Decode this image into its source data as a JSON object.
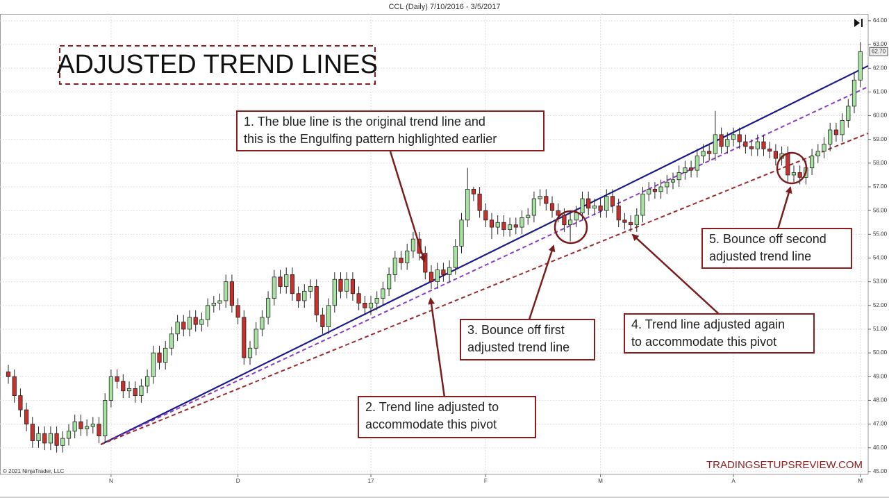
{
  "chart_data": {
    "type": "candlestick",
    "title": "CCL (Daily)  7/10/2016 - 3/5/2017",
    "heading": "ADJUSTED TREND LINES",
    "copyright": "© 2021 NinjaTrader, LLC",
    "watermark": "TRADINGSETUPSREVIEW.COM",
    "up_color": "#a6e3a0",
    "down_color": "#c8302c",
    "xlim": [
      -1.38,
      142.3
    ],
    "ylim": [
      44.88,
      64.29
    ],
    "xticks": [
      {
        "value": 17,
        "label": "N"
      },
      {
        "value": 38,
        "label": "D"
      },
      {
        "value": 60,
        "label": "17"
      },
      {
        "value": 79,
        "label": "F"
      },
      {
        "value": 98,
        "label": "M"
      },
      {
        "value": 120,
        "label": "A"
      },
      {
        "value": 141,
        "label": "M"
      }
    ],
    "yticks": [
      {
        "value": 45,
        "label": "45.00"
      },
      {
        "value": 46,
        "label": "46.00"
      },
      {
        "value": 47,
        "label": "47.00"
      },
      {
        "value": 48,
        "label": "48.00"
      },
      {
        "value": 49,
        "label": "49.00"
      },
      {
        "value": 50,
        "label": "50.00"
      },
      {
        "value": 51,
        "label": "51.00"
      },
      {
        "value": 52,
        "label": "52.00"
      },
      {
        "value": 53,
        "label": "53.00"
      },
      {
        "value": 54,
        "label": "54.00"
      },
      {
        "value": 55,
        "label": "55.00"
      },
      {
        "value": 56,
        "label": "56.00"
      },
      {
        "value": 57,
        "label": "57.00"
      },
      {
        "value": 58,
        "label": "58.00"
      },
      {
        "value": 59,
        "label": "59.00"
      },
      {
        "value": 60,
        "label": "60.00"
      },
      {
        "value": 61,
        "label": "61.00"
      },
      {
        "value": 62,
        "label": "62.00"
      },
      {
        "value": 63,
        "label": "63.00"
      },
      {
        "value": 64,
        "label": "64.00"
      }
    ],
    "grid": true,
    "open": [
      49.2,
      49.0,
      48.2,
      47.6,
      47.0,
      46.3,
      46.6,
      46.2,
      46.6,
      46.1,
      46.4,
      46.7,
      47.1,
      46.8,
      46.9,
      47.0,
      46.5,
      48.0,
      49.0,
      48.8,
      48.4,
      48.5,
      48.2,
      48.6,
      49.0,
      50.0,
      49.6,
      50.2,
      50.8,
      51.3,
      51.0,
      51.5,
      51.2,
      51.4,
      52.0,
      52.1,
      52.2,
      53.0,
      52.0,
      51.5,
      49.8,
      50.2,
      51.0,
      51.5,
      52.3,
      53.2,
      52.8,
      53.3,
      52.5,
      52.2,
      52.6,
      52.8,
      51.6,
      51.1,
      52.0,
      53.1,
      52.6,
      53.1,
      52.5,
      52.1,
      51.9,
      52.1,
      52.3,
      52.7,
      53.3,
      54.0,
      53.8,
      54.3,
      54.8,
      54.2,
      53.4,
      53.0,
      53.5,
      53.3,
      53.6,
      54.5,
      55.6,
      56.9,
      56.7,
      56.0,
      55.6,
      55.3,
      55.5,
      55.2,
      55.4,
      55.3,
      55.7,
      55.8,
      56.5,
      56.6,
      56.3,
      56.0,
      55.8,
      55.4,
      55.6,
      55.9,
      56.5,
      56.1,
      56.2,
      56.0,
      56.6,
      56.2,
      55.6,
      55.5,
      55.4,
      55.8,
      56.7,
      56.9,
      56.8,
      57.0,
      57.2,
      57.3,
      57.6,
      57.8,
      57.7,
      58.3,
      58.5,
      58.4,
      59.2,
      58.7,
      59.0,
      59.2,
      58.9,
      58.7,
      58.6,
      58.9,
      58.6,
      58.5,
      58.2,
      58.4,
      57.5,
      57.6,
      57.4,
      57.8,
      58.3,
      58.5,
      58.8,
      59.4,
      59.2,
      59.8,
      60.4,
      61.5
    ],
    "high": [
      49.5,
      49.3,
      48.5,
      47.9,
      47.3,
      46.9,
      46.9,
      46.9,
      46.9,
      46.7,
      47.0,
      47.4,
      47.4,
      47.2,
      47.3,
      47.3,
      48.3,
      49.3,
      49.3,
      49.1,
      48.8,
      48.8,
      48.9,
      49.3,
      50.3,
      50.3,
      50.5,
      51.1,
      51.6,
      51.6,
      51.8,
      51.8,
      51.7,
      52.3,
      52.4,
      52.5,
      53.3,
      53.3,
      52.3,
      51.8,
      50.5,
      51.3,
      51.8,
      52.6,
      53.5,
      53.5,
      53.6,
      53.6,
      52.8,
      52.9,
      53.1,
      53.1,
      51.9,
      52.3,
      53.4,
      53.4,
      53.4,
      53.4,
      52.8,
      52.4,
      52.4,
      52.6,
      53.0,
      53.6,
      54.3,
      54.3,
      54.6,
      55.1,
      55.1,
      54.5,
      53.7,
      53.8,
      53.8,
      53.9,
      54.8,
      55.9,
      57.8,
      57.0,
      57.0,
      56.3,
      55.9,
      55.8,
      55.8,
      55.7,
      55.7,
      56.0,
      56.1,
      56.8,
      56.9,
      56.9,
      56.6,
      56.3,
      56.1,
      55.9,
      56.2,
      56.8,
      56.8,
      56.5,
      56.5,
      56.9,
      56.9,
      56.5,
      55.9,
      55.8,
      56.1,
      57.0,
      57.2,
      57.2,
      57.3,
      57.5,
      57.6,
      57.9,
      58.1,
      58.1,
      58.6,
      58.8,
      58.8,
      60.2,
      59.5,
      59.3,
      59.5,
      59.5,
      59.2,
      59.0,
      59.2,
      59.2,
      58.9,
      58.8,
      58.7,
      58.7,
      57.9,
      57.9,
      58.1,
      58.6,
      58.8,
      59.1,
      59.7,
      59.7,
      60.1,
      60.7,
      61.8,
      63.1
    ],
    "low": [
      48.7,
      47.9,
      47.3,
      46.7,
      46.0,
      46.0,
      45.9,
      45.9,
      45.8,
      45.8,
      46.1,
      46.4,
      46.5,
      46.5,
      46.6,
      46.2,
      46.2,
      47.7,
      48.5,
      48.1,
      48.1,
      47.9,
      47.9,
      48.3,
      48.7,
      49.3,
      49.3,
      49.9,
      50.5,
      50.7,
      50.7,
      50.9,
      50.9,
      51.1,
      51.7,
      51.8,
      51.9,
      51.7,
      51.2,
      49.5,
      49.5,
      49.9,
      50.7,
      51.2,
      52.0,
      52.5,
      52.5,
      52.2,
      51.9,
      51.9,
      52.3,
      51.3,
      50.8,
      50.8,
      51.7,
      52.3,
      52.3,
      52.2,
      51.8,
      51.6,
      51.6,
      51.8,
      52.0,
      52.4,
      53.0,
      53.5,
      53.5,
      54.0,
      53.9,
      53.1,
      52.7,
      52.7,
      53.0,
      53.0,
      53.3,
      54.2,
      55.3,
      56.4,
      55.7,
      55.3,
      54.8,
      55.0,
      54.9,
      54.9,
      55.0,
      55.0,
      55.4,
      55.5,
      56.2,
      56.0,
      55.7,
      55.5,
      55.1,
      54.7,
      55.3,
      55.6,
      55.8,
      55.8,
      55.7,
      55.7,
      55.9,
      55.3,
      55.2,
      55.1,
      55.1,
      55.5,
      56.4,
      56.5,
      56.5,
      56.7,
      56.9,
      57.0,
      57.3,
      57.4,
      57.4,
      58.0,
      58.1,
      58.1,
      58.4,
      58.4,
      58.7,
      58.6,
      58.4,
      58.3,
      58.3,
      58.3,
      58.2,
      57.9,
      57.9,
      57.2,
      57.2,
      57.1,
      57.1,
      57.5,
      58.0,
      58.2,
      58.5,
      58.9,
      58.9,
      59.5,
      60.1,
      61.2
    ],
    "close": [
      49.0,
      48.2,
      47.6,
      47.0,
      46.3,
      46.6,
      46.2,
      46.6,
      46.1,
      46.4,
      46.7,
      47.1,
      46.8,
      46.9,
      47.0,
      46.5,
      48.0,
      49.0,
      48.8,
      48.4,
      48.5,
      48.2,
      48.6,
      49.0,
      50.0,
      49.6,
      50.2,
      50.8,
      51.3,
      51.0,
      51.5,
      51.2,
      51.4,
      52.0,
      52.1,
      52.2,
      53.0,
      52.0,
      51.5,
      49.8,
      50.2,
      51.0,
      51.5,
      52.3,
      53.2,
      52.8,
      53.3,
      52.5,
      52.2,
      52.6,
      52.8,
      51.6,
      51.1,
      52.0,
      53.1,
      52.6,
      53.1,
      52.5,
      52.1,
      51.9,
      52.1,
      52.3,
      52.7,
      53.3,
      54.0,
      53.8,
      54.3,
      54.8,
      54.2,
      53.4,
      53.0,
      53.5,
      53.3,
      53.6,
      54.5,
      55.6,
      56.9,
      56.7,
      56.0,
      55.6,
      55.3,
      55.5,
      55.2,
      55.4,
      55.3,
      55.7,
      55.8,
      56.5,
      56.6,
      56.3,
      56.0,
      55.8,
      55.4,
      55.6,
      55.9,
      56.5,
      56.1,
      56.2,
      56.0,
      56.6,
      56.2,
      55.6,
      55.5,
      55.4,
      55.8,
      56.7,
      56.9,
      56.8,
      57.0,
      57.2,
      57.3,
      57.6,
      57.8,
      57.7,
      58.3,
      58.5,
      58.4,
      59.2,
      58.7,
      59.0,
      59.2,
      58.9,
      58.7,
      58.6,
      58.9,
      58.6,
      58.5,
      58.2,
      58.4,
      57.5,
      57.6,
      57.4,
      57.8,
      58.3,
      58.5,
      58.8,
      59.4,
      59.2,
      59.8,
      60.4,
      61.5,
      62.7
    ],
    "last_label": "62.70",
    "trend_lines": [
      {
        "color": "#1a1a8c",
        "dashed": false,
        "x": [
          15.3,
          142.3
        ],
        "y": [
          46.14,
          62.1
        ]
      },
      {
        "color": "#8a3cc8",
        "dashed": true,
        "x": [
          15.3,
          142.3
        ],
        "y": [
          46.14,
          61.22
        ]
      },
      {
        "color": "#9a2a2a",
        "dashed": true,
        "x": [
          15.3,
          142.3
        ],
        "y": [
          46.14,
          59.26
        ]
      }
    ],
    "annotations": [
      {
        "lines": [
          "1. The blue line is the original trend line and",
          "this is the Engulfing pattern highlighted earlier"
        ]
      },
      {
        "lines": [
          "2. Trend line adjusted to",
          "accommodate this pivot"
        ]
      },
      {
        "lines": [
          "3. Bounce off first",
          "adjusted trend line"
        ]
      },
      {
        "lines": [
          "4. Trend line adjusted again",
          "to accommodate this pivot"
        ]
      },
      {
        "lines": [
          "5. Bounce off second",
          "adjusted trend line"
        ]
      }
    ]
  }
}
